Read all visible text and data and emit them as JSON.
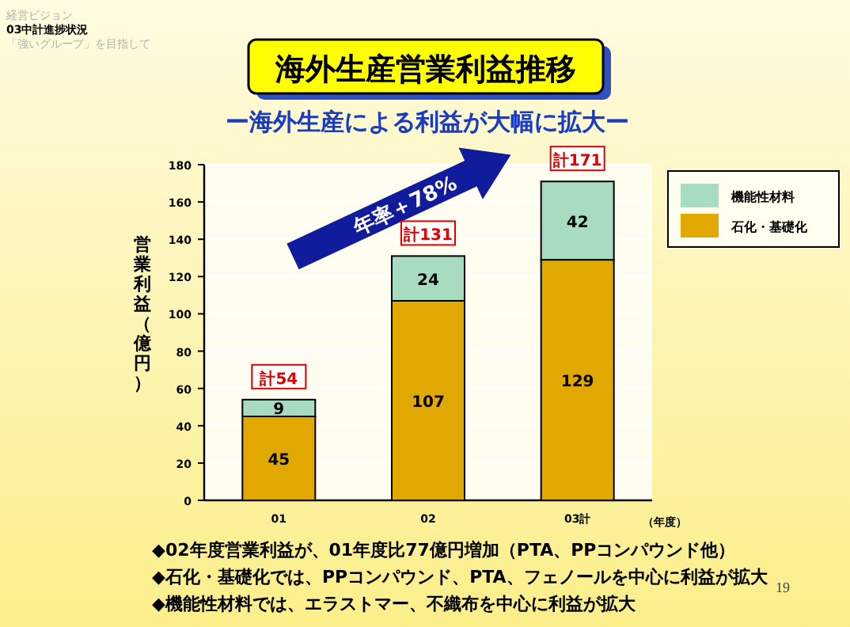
{
  "chart_data": {
    "type": "bar",
    "stacked": true,
    "title": "海外生産営業利益推移",
    "subtitle": "ー海外生産による利益が大幅に拡大ー",
    "ylabel": "営業利益（億円）",
    "xlabel": "（年度）",
    "categories": [
      "01",
      "02",
      "03計"
    ],
    "series": [
      {
        "name": "石化・基礎化",
        "color": "#e0a800",
        "values": [
          45,
          107,
          129
        ]
      },
      {
        "name": "機能性材料",
        "color": "#a8dcc0",
        "values": [
          9,
          24,
          42
        ]
      }
    ],
    "totals": [
      "計54",
      "計131",
      "計171"
    ],
    "data_labels": true,
    "ylim": [
      0,
      180
    ],
    "yticks": [
      0,
      20,
      40,
      60,
      80,
      100,
      120,
      140,
      160,
      180
    ],
    "grid": "y",
    "legend": "top right",
    "annotations": [
      "経営ビジョン",
      "03中計進捗状況",
      "「強いグループ」を目指して",
      "年率＋78%",
      "◆02年度営業利益が、01年度比77億円増加（PTA、PPコンパウンド他）",
      "◆石化・基礎化では、PPコンパウンド、PTA、フェノールを中心に利益が拡大",
      "◆機能性材料では、エラストマー、不織布を中心に利益が拡大",
      "19"
    ]
  }
}
